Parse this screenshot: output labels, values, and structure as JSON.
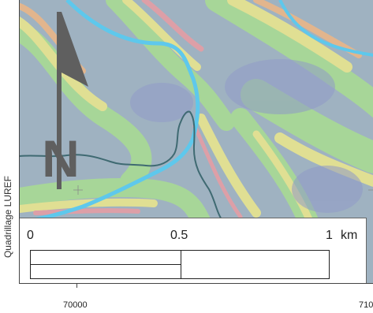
{
  "grid_label": "Quadrillage LUREF",
  "scale_bar": {
    "zero": "0",
    "half": "0.5",
    "one": "1",
    "unit": "km"
  },
  "coordinates": {
    "x1": "70000",
    "x2": "710"
  },
  "map": {
    "type": "slope/relief raster with river and contour line",
    "north_arrow_letter": "N",
    "colors": {
      "background": "#9fb2c1",
      "green": "#a9dd91",
      "yellow": "#ece88c",
      "orange": "#eeb684",
      "pink": "#e89ca3",
      "purple": "#8f9ac8",
      "river": "#5ec8ec",
      "contour": "#3f6a72",
      "arrow": "#5f5f5f"
    }
  }
}
